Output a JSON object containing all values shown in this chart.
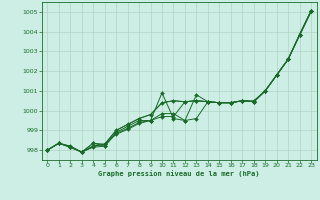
{
  "title": "Graphe pression niveau de la mer (hPa)",
  "bg_color": "#cceee4",
  "grid_color": "#aaccbb",
  "line_color": "#1a6b2a",
  "marker_color": "#1a6b2a",
  "xlim": [
    -0.5,
    23.5
  ],
  "ylim": [
    997.5,
    1005.5
  ],
  "yticks": [
    998,
    999,
    1000,
    1001,
    1002,
    1003,
    1004,
    1005
  ],
  "xticks": [
    0,
    1,
    2,
    3,
    4,
    5,
    6,
    7,
    8,
    9,
    10,
    11,
    12,
    13,
    14,
    15,
    16,
    17,
    18,
    19,
    20,
    21,
    22,
    23
  ],
  "series": [
    {
      "x": [
        0,
        1,
        2,
        3,
        4,
        5,
        6,
        7,
        8,
        9,
        10,
        11,
        12,
        13,
        14,
        15,
        16,
        17,
        18,
        19,
        20,
        21,
        22,
        23
      ],
      "y": [
        998.0,
        998.35,
        998.2,
        997.9,
        998.2,
        998.3,
        999.0,
        999.3,
        999.6,
        999.8,
        1000.4,
        1000.5,
        1000.45,
        1000.5,
        1000.45,
        1000.4,
        1000.4,
        1000.5,
        1000.45,
        1001.0,
        1001.8,
        1002.6,
        1003.8,
        1005.0
      ],
      "has_markers": false
    },
    {
      "x": [
        0,
        1,
        2,
        3,
        4,
        5,
        6,
        7,
        8,
        9,
        10,
        11,
        12,
        13,
        14,
        15,
        16,
        17,
        18,
        19,
        20,
        21,
        22,
        23
      ],
      "y": [
        998.0,
        998.35,
        998.2,
        997.9,
        998.2,
        998.3,
        999.0,
        999.3,
        999.6,
        999.8,
        1000.4,
        1000.5,
        1000.45,
        1000.5,
        1000.45,
        1000.4,
        1000.4,
        1000.5,
        1000.45,
        1001.0,
        1001.8,
        1002.6,
        1003.85,
        1005.05
      ],
      "has_markers": true
    },
    {
      "x": [
        0,
        1,
        2,
        3,
        4,
        5,
        6,
        7,
        8,
        9,
        10,
        11,
        12,
        13,
        14,
        15,
        16,
        17,
        18,
        19,
        20,
        21,
        22,
        23
      ],
      "y": [
        998.0,
        998.35,
        998.15,
        997.9,
        998.15,
        998.2,
        998.9,
        999.2,
        999.5,
        999.5,
        1000.9,
        999.6,
        999.5,
        1000.8,
        1000.45,
        1000.4,
        1000.4,
        1000.5,
        1000.45,
        1001.0,
        1001.8,
        1002.6,
        1003.85,
        1005.05
      ],
      "has_markers": true
    },
    {
      "x": [
        0,
        1,
        2,
        3,
        4,
        5,
        6,
        7,
        8,
        9,
        10,
        11,
        12,
        13,
        14,
        15,
        16,
        17,
        18,
        19,
        20,
        21,
        22,
        23
      ],
      "y": [
        998.0,
        998.35,
        998.15,
        997.9,
        998.35,
        998.2,
        998.85,
        999.1,
        999.4,
        999.5,
        999.85,
        999.85,
        999.5,
        999.6,
        1000.45,
        1000.4,
        1000.4,
        1000.5,
        1000.5,
        1001.0,
        1001.8,
        1002.6,
        1003.85,
        1005.05
      ],
      "has_markers": true
    },
    {
      "x": [
        0,
        1,
        2,
        3,
        4,
        5,
        6,
        7,
        8,
        9,
        10,
        11,
        12,
        13,
        14,
        15,
        16,
        17,
        18,
        19,
        20,
        21,
        22,
        23
      ],
      "y": [
        998.0,
        998.35,
        998.15,
        997.9,
        998.35,
        998.3,
        998.8,
        999.05,
        999.35,
        999.5,
        999.7,
        999.7,
        1000.45,
        1000.5,
        1000.45,
        1000.4,
        1000.4,
        1000.5,
        1000.45,
        1001.0,
        1001.8,
        1002.6,
        1003.85,
        1005.05
      ],
      "has_markers": true
    }
  ],
  "figsize": [
    3.2,
    2.0
  ],
  "dpi": 100
}
